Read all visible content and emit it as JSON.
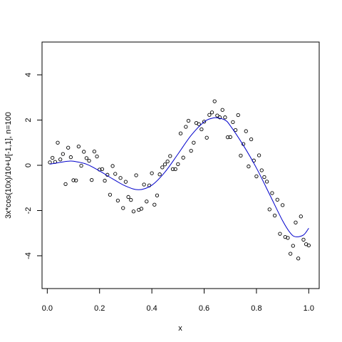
{
  "chart_data": {
    "type": "scatter",
    "xlabel": "x",
    "ylabel": "3x*cos(10x)/10+U[-1,1], n=100",
    "xlim": [
      -0.02,
      1.04
    ],
    "ylim": [
      -5.45,
      5.45
    ],
    "x_ticks": [
      0.0,
      0.2,
      0.4,
      0.6,
      0.8,
      1.0
    ],
    "x_tick_labels": [
      "0.0",
      "0.2",
      "0.4",
      "0.6",
      "0.8",
      "1.0"
    ],
    "y_ticks": [
      -4,
      -2,
      0,
      2,
      4
    ],
    "y_tick_labels": [
      "-4",
      "-2",
      "0",
      "2",
      "4"
    ],
    "grid": false,
    "legend": "none",
    "colors": {
      "points": "#000000",
      "fit_line": "#0000cc",
      "frame": "#000000"
    },
    "series": [
      {
        "kind": "points",
        "x": [
          0.01,
          0.02,
          0.03,
          0.04,
          0.05,
          0.06,
          0.07,
          0.08,
          0.09,
          0.1,
          0.11,
          0.12,
          0.13,
          0.14,
          0.15,
          0.16,
          0.17,
          0.18,
          0.19,
          0.2,
          0.21,
          0.22,
          0.23,
          0.24,
          0.25,
          0.26,
          0.27,
          0.28,
          0.29,
          0.3,
          0.31,
          0.32,
          0.33,
          0.34,
          0.35,
          0.36,
          0.37,
          0.38,
          0.39,
          0.4,
          0.41,
          0.42,
          0.43,
          0.44,
          0.45,
          0.46,
          0.47,
          0.48,
          0.49,
          0.5,
          0.51,
          0.52,
          0.53,
          0.54,
          0.55,
          0.56,
          0.57,
          0.58,
          0.59,
          0.6,
          0.61,
          0.62,
          0.63,
          0.64,
          0.65,
          0.66,
          0.67,
          0.68,
          0.69,
          0.7,
          0.71,
          0.72,
          0.73,
          0.74,
          0.75,
          0.76,
          0.77,
          0.78,
          0.79,
          0.8,
          0.81,
          0.82,
          0.83,
          0.84,
          0.85,
          0.86,
          0.87,
          0.88,
          0.89,
          0.9,
          0.91,
          0.92,
          0.93,
          0.94,
          0.95,
          0.96,
          0.97,
          0.98,
          0.99,
          1.0
        ],
        "y": [
          0.13,
          0.33,
          0.15,
          1.0,
          0.26,
          0.5,
          -0.83,
          0.78,
          0.36,
          -0.66,
          -0.67,
          0.83,
          -0.02,
          0.6,
          0.32,
          0.2,
          -0.65,
          0.61,
          0.39,
          -0.19,
          -0.17,
          -0.68,
          -0.42,
          -1.3,
          -0.03,
          -0.38,
          -1.56,
          -0.56,
          -1.89,
          -0.73,
          -1.4,
          -1.53,
          -2.04,
          -0.44,
          -1.97,
          -1.92,
          -0.85,
          -1.6,
          -0.89,
          -0.35,
          -1.74,
          -1.33,
          -0.4,
          -0.09,
          0.04,
          0.17,
          0.41,
          -0.17,
          -0.17,
          0.05,
          1.41,
          0.34,
          1.7,
          1.97,
          0.64,
          1.0,
          1.87,
          1.82,
          1.59,
          1.93,
          1.22,
          2.23,
          2.34,
          2.83,
          2.2,
          2.12,
          2.45,
          2.12,
          1.24,
          1.25,
          1.91,
          1.56,
          2.22,
          0.43,
          0.94,
          1.51,
          -0.05,
          1.15,
          0.21,
          -0.49,
          0.44,
          -0.22,
          -0.52,
          -0.72,
          -1.95,
          -1.23,
          -2.22,
          -1.52,
          -3.03,
          -1.76,
          -3.17,
          -3.21,
          -3.91,
          -3.56,
          -2.53,
          -4.12,
          -2.26,
          -3.29,
          -3.49,
          -3.54
        ]
      },
      {
        "kind": "line",
        "x": [
          0.01,
          0.05,
          0.08,
          0.1,
          0.15,
          0.2,
          0.25,
          0.3,
          0.35,
          0.4,
          0.45,
          0.5,
          0.55,
          0.6,
          0.63,
          0.65,
          0.68,
          0.7,
          0.75,
          0.8,
          0.85,
          0.9,
          0.93,
          0.95,
          0.98,
          1.0
        ],
        "y": [
          0.05,
          0.13,
          0.18,
          0.18,
          0.05,
          -0.25,
          -0.6,
          -0.92,
          -1.08,
          -0.88,
          -0.3,
          0.5,
          1.32,
          1.92,
          2.08,
          2.1,
          2.0,
          1.75,
          0.88,
          -0.12,
          -1.28,
          -2.45,
          -3.0,
          -3.16,
          -3.08,
          -2.78
        ]
      }
    ]
  }
}
